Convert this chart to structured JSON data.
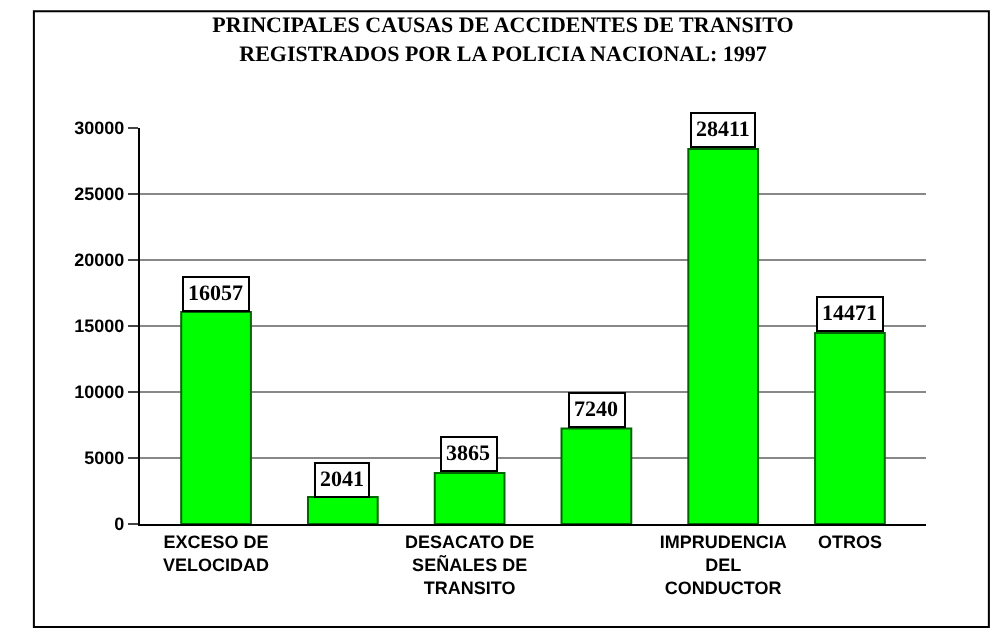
{
  "chart_data": {
    "type": "bar",
    "title": "PRINCIPALES CAUSAS DE ACCIDENTES DE TRANSITO\nREGISTRADOS POR LA POLICIA NACIONAL: 1997",
    "categories": [
      "EXCESO DE\nVELOCIDAD",
      null,
      "DESACATO DE\nSEÑALES DE\nTRANSITO",
      null,
      "IMPRUDENCIA\nDEL\nCONDUCTOR",
      "OTROS"
    ],
    "values": [
      16057,
      2041,
      3865,
      7240,
      28411,
      14471
    ],
    "color": "#00ff00",
    "ylim": [
      0,
      30000
    ],
    "yticks": [
      0,
      5000,
      10000,
      15000,
      20000,
      25000,
      30000
    ],
    "grid": "y",
    "data_labels": true
  }
}
